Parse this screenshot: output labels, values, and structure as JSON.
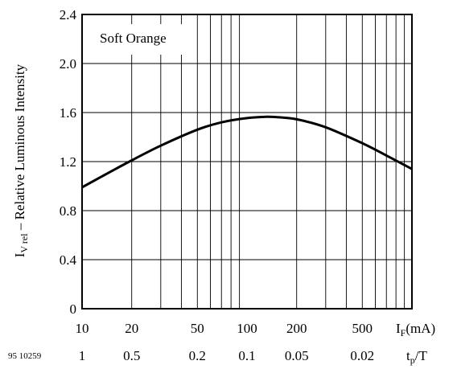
{
  "figure_id": "95 10259",
  "chart_data": {
    "type": "line",
    "annotation": "Soft Orange",
    "ylabel": {
      "main": "I",
      "sub": "V rel",
      "rest": " – Relative Luminous Intensity"
    },
    "x_scale": "log",
    "xlim": [
      10,
      1000
    ],
    "ylim": [
      0,
      2.4
    ],
    "grid": true,
    "y_ticks": [
      {
        "value": 0,
        "label": "0"
      },
      {
        "value": 0.4,
        "label": "0.4"
      },
      {
        "value": 0.8,
        "label": "0.8"
      },
      {
        "value": 1.2,
        "label": "1.2"
      },
      {
        "value": 1.6,
        "label": "1.6"
      },
      {
        "value": 2.0,
        "label": "2.0"
      },
      {
        "value": 2.4,
        "label": "2.4"
      }
    ],
    "x_ticks": [
      {
        "value": 10,
        "label": "10"
      },
      {
        "value": 20,
        "label": "20"
      },
      {
        "value": 50,
        "label": "50"
      },
      {
        "value": 100,
        "label": "100"
      },
      {
        "value": 200,
        "label": "200"
      },
      {
        "value": 500,
        "label": "500"
      }
    ],
    "x_axis_label": {
      "main": "I",
      "sub": "F",
      "rest": "(mA)"
    },
    "secondary_x_ticks": [
      {
        "value": 10,
        "label": "1"
      },
      {
        "value": 20,
        "label": "0.5"
      },
      {
        "value": 50,
        "label": "0.2"
      },
      {
        "value": 100,
        "label": "0.1"
      },
      {
        "value": 200,
        "label": "0.05"
      },
      {
        "value": 500,
        "label": "0.02"
      }
    ],
    "secondary_axis_label": {
      "main": "t",
      "sub": "p",
      "rest": "/T"
    },
    "series": [
      {
        "x": [
          10,
          15,
          20,
          30,
          50,
          70,
          100,
          130,
          150,
          200,
          300,
          500,
          700,
          1000
        ],
        "y": [
          0.99,
          1.12,
          1.21,
          1.33,
          1.46,
          1.52,
          1.555,
          1.565,
          1.563,
          1.545,
          1.48,
          1.35,
          1.25,
          1.14
        ]
      }
    ]
  }
}
